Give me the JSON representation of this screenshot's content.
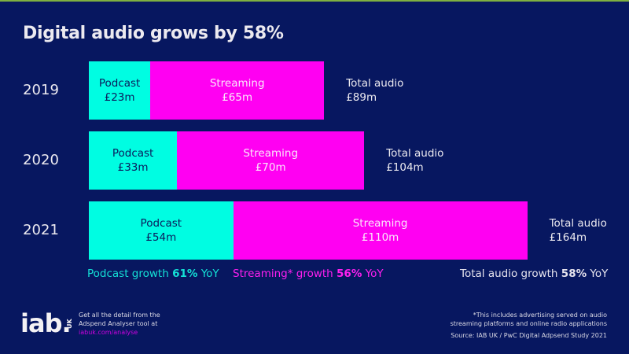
{
  "title": "Digital audio grows by 58%",
  "colors": {
    "background": "#071760",
    "podcast": "#00fde2",
    "streaming": "#ff00f2",
    "accent_line": "#7fb040"
  },
  "chart_data": {
    "type": "bar",
    "orientation": "horizontal",
    "stacked": true,
    "title": "Digital audio grows by 58%",
    "categories": [
      "2019",
      "2020",
      "2021"
    ],
    "series": [
      {
        "name": "Podcast",
        "values": [
          23,
          33,
          54
        ],
        "labels": [
          "£23m",
          "£33m",
          "£54m"
        ]
      },
      {
        "name": "Streaming",
        "values": [
          65,
          70,
          110
        ],
        "labels": [
          "£65m",
          "£70m",
          "£110m"
        ]
      }
    ],
    "totals": {
      "name": "Total audio",
      "values": [
        89,
        104,
        164
      ],
      "labels": [
        "£89m",
        "£104m",
        "£164m"
      ]
    },
    "unit": "£m",
    "grid": false,
    "growth": {
      "podcast": {
        "prefix": "Podcast growth ",
        "value": "61%",
        "suffix": " YoY"
      },
      "streaming": {
        "prefix": "Streaming* growth ",
        "value": "56%",
        "suffix": " YoY"
      },
      "total": {
        "prefix": "Total audio growth ",
        "value": "58%",
        "suffix": " YoY"
      }
    }
  },
  "footer": {
    "logo": "iab.",
    "logo_sub": "UK",
    "info_line1": "Get all the detail from the",
    "info_line2": "Adspend Analyser tool at",
    "link": "iabuk.com/analyse",
    "note_line1": "*This includes advertising served on audio",
    "note_line2": "streaming platforms and online radio applications",
    "source": "Source: IAB UK / PwC Digital Adpsend Study 2021"
  }
}
